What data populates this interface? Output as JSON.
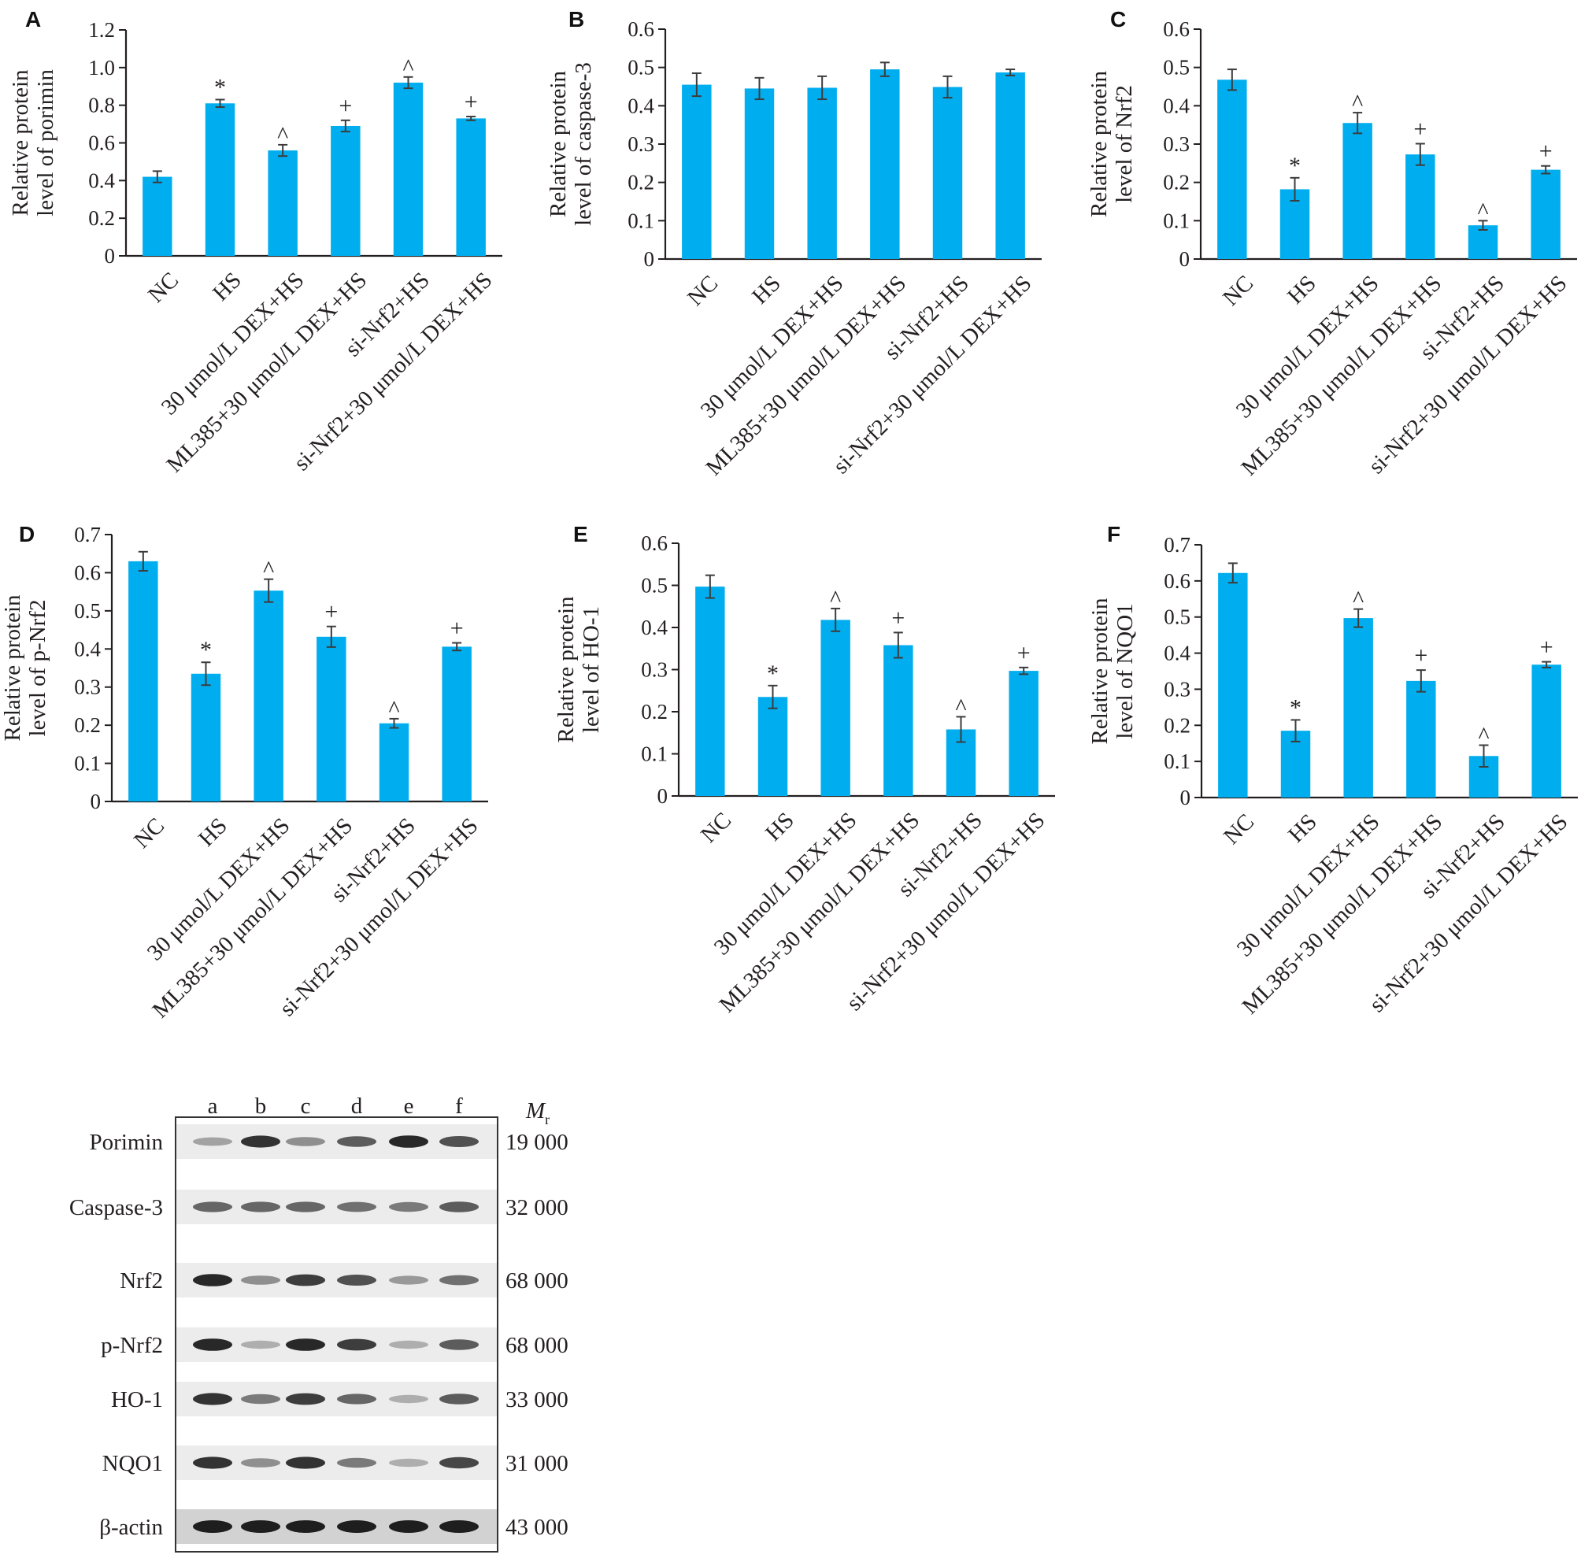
{
  "chart_data": [
    {
      "type": "bar",
      "panel": "A",
      "ylabel": [
        "Relative protein",
        "level of porimin"
      ],
      "ylim": [
        0,
        1.2
      ],
      "yticks": [
        "0",
        "0.2",
        "0.4",
        "0.6",
        "0.8",
        "1.0",
        "1.2"
      ],
      "categories": [
        "NC",
        "HS",
        "30 μmol/L DEX+HS",
        "ML385+30 μmol/L DEX+HS",
        "si-Nrf2+HS",
        "si-Nrf2+30 μmol/L DEX+HS"
      ],
      "values": [
        0.42,
        0.81,
        0.56,
        0.69,
        0.92,
        0.73
      ],
      "errors": [
        0.03,
        0.02,
        0.03,
        0.03,
        0.03,
        0.01
      ],
      "significance": [
        "",
        "*",
        "^",
        "+",
        "^",
        "+"
      ]
    },
    {
      "type": "bar",
      "panel": "B",
      "ylabel": [
        "Relative protein",
        "level of caspase-3"
      ],
      "ylim": [
        0,
        0.6
      ],
      "yticks": [
        "0",
        "0.1",
        "0.2",
        "0.3",
        "0.4",
        "0.5",
        "0.6"
      ],
      "categories": [
        "NC",
        "HS",
        "30 μmol/L DEX+HS",
        "ML385+30 μmol/L DEX+HS",
        "si-Nrf2+HS",
        "si-Nrf2+30 μmol/L DEX+HS"
      ],
      "values": [
        0.455,
        0.445,
        0.447,
        0.495,
        0.449,
        0.487
      ],
      "errors": [
        0.03,
        0.028,
        0.03,
        0.018,
        0.028,
        0.008
      ],
      "significance": [
        "",
        "",
        "",
        "",
        "",
        ""
      ]
    },
    {
      "type": "bar",
      "panel": "C",
      "ylabel": [
        "Relative protein",
        "level of Nrf2"
      ],
      "ylim": [
        0,
        0.6
      ],
      "yticks": [
        "0",
        "0.1",
        "0.2",
        "0.3",
        "0.4",
        "0.5",
        "0.6"
      ],
      "categories": [
        "NC",
        "HS",
        "30 μmol/L DEX+HS",
        "ML385+30 μmol/L DEX+HS",
        "si-Nrf2+HS",
        "si-Nrf2+30 μmol/L DEX+HS"
      ],
      "values": [
        0.468,
        0.182,
        0.355,
        0.273,
        0.088,
        0.233
      ],
      "errors": [
        0.027,
        0.03,
        0.027,
        0.028,
        0.012,
        0.01
      ],
      "significance": [
        "",
        "*",
        "^",
        "+",
        "^",
        "+"
      ]
    },
    {
      "type": "bar",
      "panel": "D",
      "ylabel": [
        "Relative protein",
        "level of p-Nrf2"
      ],
      "ylim": [
        0,
        0.7
      ],
      "yticks": [
        "0",
        "0.1",
        "0.2",
        "0.3",
        "0.4",
        "0.5",
        "0.6",
        "0.7"
      ],
      "categories": [
        "NC",
        "HS",
        "30 μmol/L DEX+HS",
        "ML385+30 μmol/L DEX+HS",
        "si-Nrf2+HS",
        "si-Nrf2+30 μmol/L DEX+HS"
      ],
      "values": [
        0.63,
        0.335,
        0.553,
        0.432,
        0.205,
        0.406
      ],
      "errors": [
        0.025,
        0.03,
        0.03,
        0.027,
        0.012,
        0.01
      ],
      "significance": [
        "",
        "*",
        "^",
        "+",
        "^",
        "+"
      ]
    },
    {
      "type": "bar",
      "panel": "E",
      "ylabel": [
        "Relative protein",
        "level of HO-1"
      ],
      "ylim": [
        0,
        0.6
      ],
      "yticks": [
        "0",
        "0.1",
        "0.2",
        "0.3",
        "0.4",
        "0.5",
        "0.6"
      ],
      "categories": [
        "NC",
        "HS",
        "30 μmol/L DEX+HS",
        "ML385+30 μmol/L DEX+HS",
        "si-Nrf2+HS",
        "si-Nrf2+30 μmol/L DEX+HS"
      ],
      "values": [
        0.497,
        0.235,
        0.418,
        0.358,
        0.158,
        0.297
      ],
      "errors": [
        0.027,
        0.027,
        0.027,
        0.03,
        0.03,
        0.008
      ],
      "significance": [
        "",
        "*",
        "^",
        "+",
        "^",
        "+"
      ]
    },
    {
      "type": "bar",
      "panel": "F",
      "ylabel": [
        "Relative protein",
        "level of NQO1"
      ],
      "ylim": [
        0,
        0.7
      ],
      "yticks": [
        "0",
        "0.1",
        "0.2",
        "0.3",
        "0.4",
        "0.5",
        "0.6",
        "0.7"
      ],
      "categories": [
        "NC",
        "HS",
        "30 μmol/L DEX+HS",
        "ML385+30 μmol/L DEX+HS",
        "si-Nrf2+HS",
        "si-Nrf2+30 μmol/L DEX+HS"
      ],
      "values": [
        0.622,
        0.185,
        0.497,
        0.323,
        0.115,
        0.368
      ],
      "errors": [
        0.027,
        0.03,
        0.025,
        0.03,
        0.03,
        0.008
      ],
      "significance": [
        "",
        "*",
        "^",
        "+",
        "^",
        "+"
      ]
    }
  ],
  "colors": {
    "bar": "#00aeef",
    "error": "#3c3c3c",
    "axis": "#231f20"
  },
  "western_blot": {
    "lanes": [
      "a",
      "b",
      "c",
      "d",
      "e",
      "f"
    ],
    "mr_label": "M",
    "mr_sub": "r",
    "rows": [
      {
        "protein": "Porimin",
        "mr": "19 000",
        "intensity": [
          0.35,
          0.9,
          0.45,
          0.7,
          0.95,
          0.75
        ]
      },
      {
        "protein": "Caspase-3",
        "mr": "32 000",
        "intensity": [
          0.65,
          0.65,
          0.65,
          0.6,
          0.55,
          0.7
        ]
      },
      {
        "protein": "Nrf2",
        "mr": "68 000",
        "intensity": [
          0.95,
          0.45,
          0.85,
          0.75,
          0.4,
          0.6
        ]
      },
      {
        "protein": "p-Nrf2",
        "mr": "68 000",
        "intensity": [
          0.95,
          0.3,
          0.95,
          0.85,
          0.3,
          0.7
        ]
      },
      {
        "protein": "HO-1",
        "mr": "33 000",
        "intensity": [
          0.9,
          0.55,
          0.85,
          0.65,
          0.3,
          0.7
        ]
      },
      {
        "protein": "NQO1",
        "mr": "31 000",
        "intensity": [
          0.9,
          0.45,
          0.9,
          0.55,
          0.3,
          0.8
        ]
      },
      {
        "protein": "β-actin",
        "mr": "43 000",
        "intensity": [
          1.0,
          1.0,
          1.0,
          1.0,
          1.0,
          1.0
        ]
      }
    ]
  }
}
